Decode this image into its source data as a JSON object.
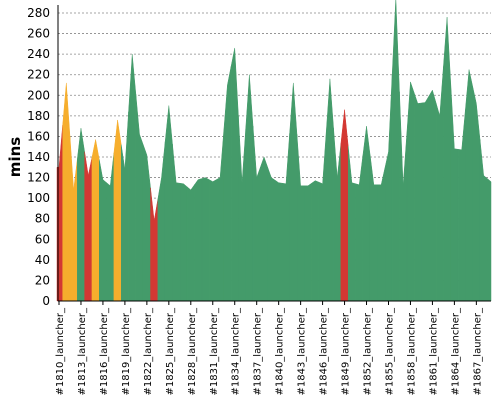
{
  "chart_data": {
    "type": "area",
    "y_label": "mins",
    "categories": [
      "#1810_launcher_",
      null,
      null,
      "#1813_launcher_",
      null,
      null,
      "#1816_launcher_",
      null,
      null,
      "#1819_launcher_",
      null,
      null,
      "#1822_launcher_",
      null,
      null,
      "#1825_launcher_",
      null,
      null,
      "#1828_launcher_",
      null,
      null,
      "#1831_launcher_",
      null,
      null,
      "#1834_launcher_",
      null,
      null,
      "#1837_launcher_",
      null,
      null,
      "#1840_launcher_",
      null,
      null,
      "#1843_launcher_",
      null,
      null,
      "#1846_launcher_",
      null,
      null,
      "#1849_launcher_",
      null,
      null,
      "#1852_launcher_",
      null,
      null,
      "#1855_launcher_",
      null,
      null,
      "#1858_launcher_",
      null,
      null,
      "#1861_launcher_",
      null,
      null,
      "#1864_launcher_",
      null,
      null,
      "#1867_launcher_",
      null,
      null
    ],
    "values": [
      130,
      212,
      108,
      168,
      122,
      157,
      118,
      112,
      176,
      128,
      240,
      162,
      142,
      78,
      120,
      190,
      115,
      114,
      108,
      118,
      120,
      116,
      120,
      210,
      246,
      115,
      220,
      120,
      140,
      120,
      115,
      114,
      212,
      112,
      112,
      117,
      114,
      216,
      120,
      186,
      115,
      113,
      170,
      113,
      113,
      145,
      295,
      112,
      213,
      192,
      193,
      205,
      180,
      276,
      148,
      147,
      225,
      192,
      122,
      116
    ],
    "colors": [
      "#d33833",
      "#f6ae2d",
      "#f6ae2d",
      "#449b6a",
      "#d33833",
      "#f6ae2d",
      "#449b6a",
      "#449b6a",
      "#f6ae2d",
      "#449b6a",
      "#449b6a",
      "#449b6a",
      "#449b6a",
      "#d33833",
      "#449b6a",
      "#449b6a",
      "#449b6a",
      "#449b6a",
      "#449b6a",
      "#449b6a",
      "#449b6a",
      "#449b6a",
      "#449b6a",
      "#449b6a",
      "#449b6a",
      "#449b6a",
      "#449b6a",
      "#449b6a",
      "#449b6a",
      "#449b6a",
      "#449b6a",
      "#449b6a",
      "#449b6a",
      "#449b6a",
      "#449b6a",
      "#449b6a",
      "#449b6a",
      "#449b6a",
      "#449b6a",
      "#d33833",
      "#449b6a",
      "#449b6a",
      "#449b6a",
      "#449b6a",
      "#449b6a",
      "#449b6a",
      "#449b6a",
      "#449b6a",
      "#449b6a",
      "#449b6a",
      "#449b6a",
      "#449b6a",
      "#449b6a",
      "#449b6a",
      "#449b6a",
      "#449b6a",
      "#449b6a",
      "#449b6a",
      "#449b6a",
      "#449b6a"
    ],
    "ylim": [
      0,
      280
    ],
    "yticks": [
      0,
      20,
      40,
      60,
      80,
      100,
      120,
      140,
      160,
      180,
      200,
      220,
      240,
      260,
      280
    ],
    "grid": true
  }
}
